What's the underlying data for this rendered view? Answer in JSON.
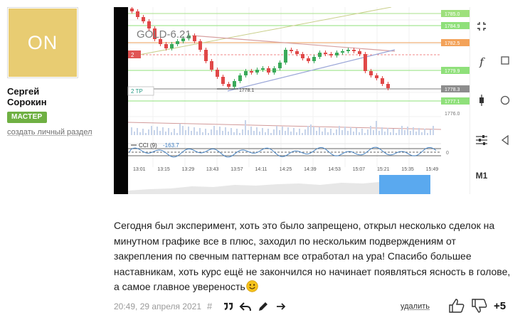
{
  "author": {
    "avatar_text": "ON",
    "avatar_color": "#e8cc72",
    "first_name": "Сергей",
    "last_name": "Сорокин",
    "badge": "МАСТЕР",
    "badge_color": "#6fb043",
    "create_section_link": "создать личный раздел"
  },
  "chart": {
    "symbol_label": "GOLD-6.21",
    "price_tags": [
      "1784.9",
      "1782.5",
      "1779.9",
      "1778.3",
      "1777.1",
      "1776.0"
    ],
    "top_tag": "1785.0",
    "low_label": "1778.1",
    "alert_label": "2",
    "tp_label": "2  TP",
    "indicator_label": "CCI (9)",
    "indicator_value": "-163.7",
    "indicator_zero": "0",
    "time_labels": [
      "13:01",
      "13:15",
      "13:29",
      "13:43",
      "13:57",
      "14:11",
      "14:25",
      "14:39",
      "14:53",
      "15:07",
      "15:21",
      "15:35",
      "15:49"
    ]
  },
  "side_toolbar": {
    "crosshair_icon": "crosshair-icon",
    "function_icon": "f",
    "candles_icon": "candles-icon",
    "settings_icon": "sliders-icon",
    "timeframe": "M1",
    "nav_square": "square-icon",
    "nav_circle": "circle-icon",
    "nav_back": "back-triangle-icon"
  },
  "post": {
    "text": "Сегодня был эксперимент, хоть это было запрещено, открыл несколько сделок на минутном графике все в плюс, заходил по нескольким подверждениям от закрепления по свечным паттернам все отработал на ура! Спасибо большее наставникам, хоть курс ещё не закончился но начинает появляться ясность в голове, а самое главное увереность",
    "emoji": "smiley-emoji"
  },
  "footer": {
    "date": "20:49, 29 апреля 2021",
    "hash": "#",
    "delete_label": "удалить",
    "score": "+5"
  }
}
